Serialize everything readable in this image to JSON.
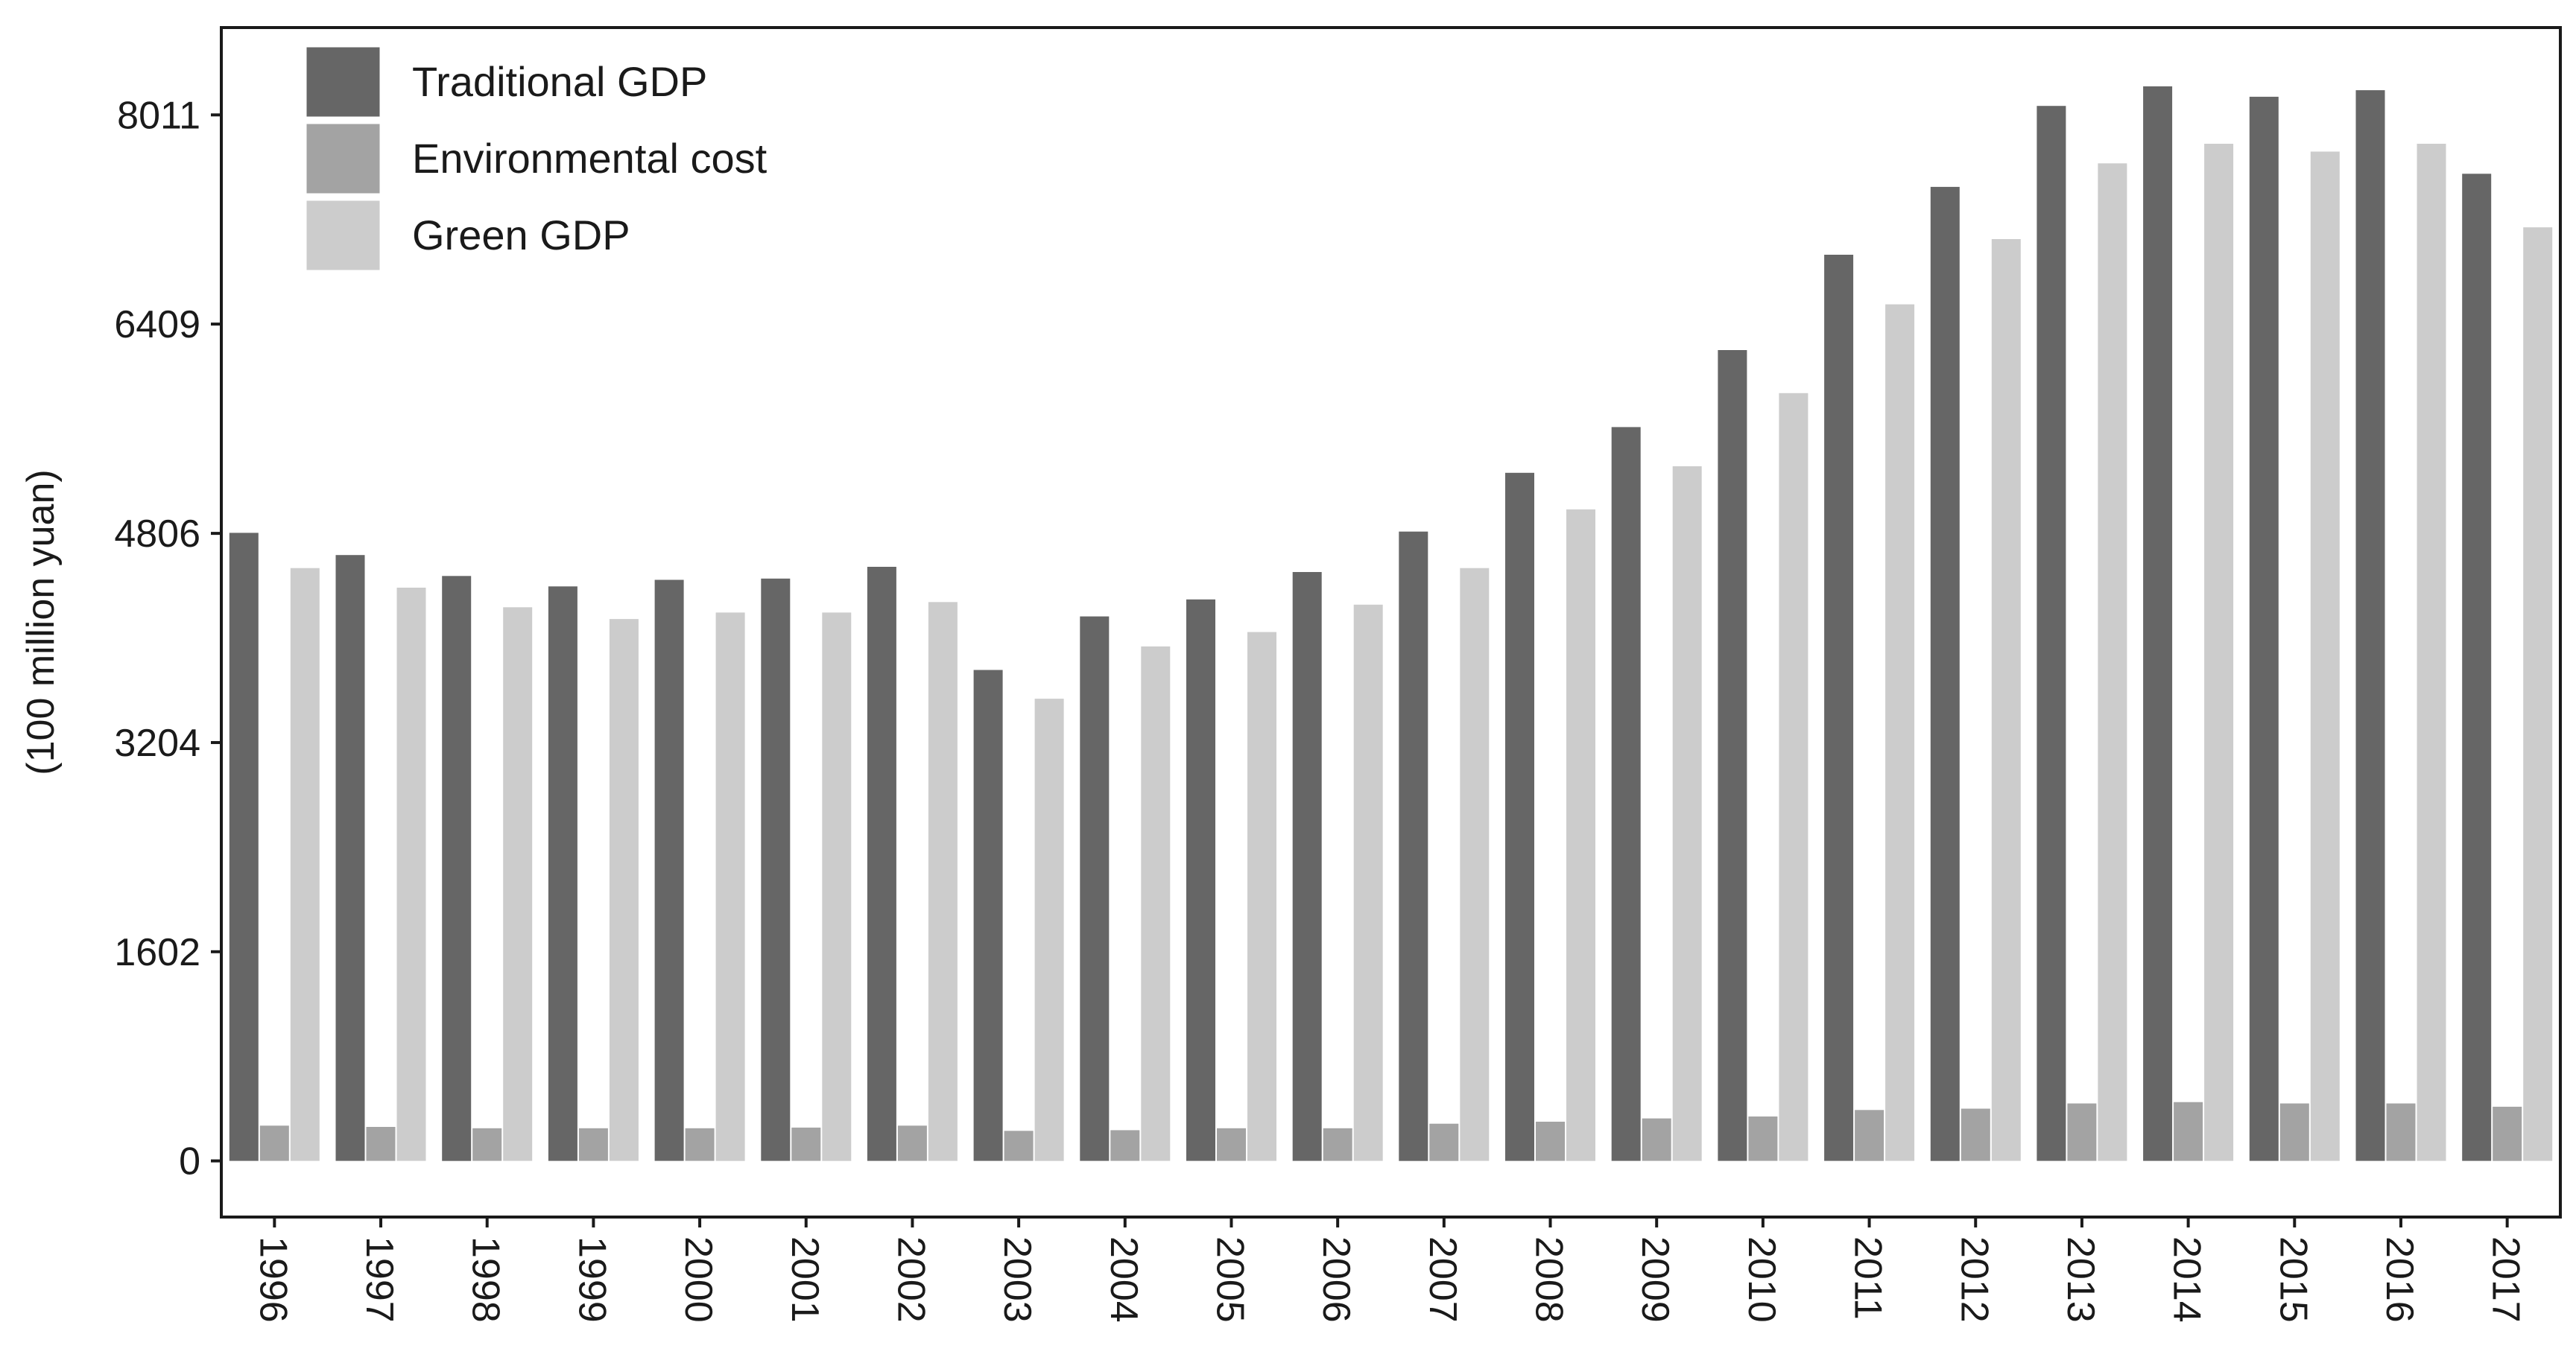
{
  "chart_data": {
    "type": "bar",
    "title": "",
    "xlabel": "",
    "ylabel": "(100 million yuan)",
    "ylim": [
      -430,
      8680
    ],
    "yticks": [
      0,
      1602,
      3204,
      4806,
      6409,
      8011
    ],
    "ytick_labels": [
      "0",
      "1602",
      "3204",
      "4806",
      "6409",
      "8011"
    ],
    "grid": false,
    "legend_position": "top-left",
    "categories": [
      "1996",
      "1997",
      "1998",
      "1999",
      "2000",
      "2001",
      "2002",
      "2003",
      "2004",
      "2005",
      "2006",
      "2007",
      "2008",
      "2009",
      "2010",
      "2011",
      "2012",
      "2013",
      "2014",
      "2015",
      "2016",
      "2017"
    ],
    "series": [
      {
        "name": "Traditional GDP",
        "color": "#666666",
        "values": [
          4810,
          4640,
          4480,
          4400,
          4450,
          4460,
          4550,
          3760,
          4170,
          4300,
          4510,
          4820,
          5270,
          5620,
          6210,
          6940,
          7460,
          8080,
          8230,
          8150,
          8200,
          7560
        ]
      },
      {
        "name": "Environmental cost",
        "color": "#a3a3a3",
        "values": [
          270,
          260,
          250,
          250,
          250,
          255,
          270,
          230,
          235,
          250,
          250,
          285,
          300,
          325,
          340,
          390,
          400,
          440,
          450,
          440,
          440,
          415
        ]
      },
      {
        "name": "Green GDP",
        "color": "#cccccc",
        "values": [
          4540,
          4390,
          4240,
          4150,
          4200,
          4200,
          4280,
          3540,
          3940,
          4050,
          4260,
          4540,
          4990,
          5320,
          5880,
          6560,
          7060,
          7640,
          7790,
          7730,
          7790,
          7150
        ]
      }
    ]
  }
}
